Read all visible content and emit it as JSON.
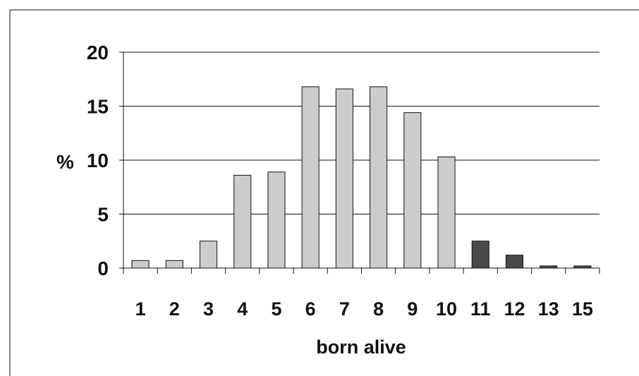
{
  "chart_data": {
    "type": "bar",
    "categories": [
      "1",
      "2",
      "3",
      "4",
      "5",
      "6",
      "7",
      "8",
      "9",
      "10",
      "11",
      "12",
      "13",
      "15"
    ],
    "values": [
      0.7,
      0.7,
      2.5,
      8.6,
      8.9,
      16.8,
      16.6,
      16.8,
      14.4,
      10.3,
      2.5,
      1.2,
      0.2,
      0.2
    ],
    "title": "",
    "xlabel": "born alive",
    "ylabel": "%",
    "ylim": [
      0,
      20
    ],
    "yticks": [
      0,
      5,
      10,
      15,
      20
    ],
    "grid": true,
    "colors": {
      "light_bar": "#cccccc",
      "dark_bar": "#4a4a4a",
      "bar_edge": "#111111",
      "gridline": "#111111",
      "frame": "#111111"
    },
    "dark_categories": [
      "11",
      "12",
      "13",
      "15"
    ]
  }
}
